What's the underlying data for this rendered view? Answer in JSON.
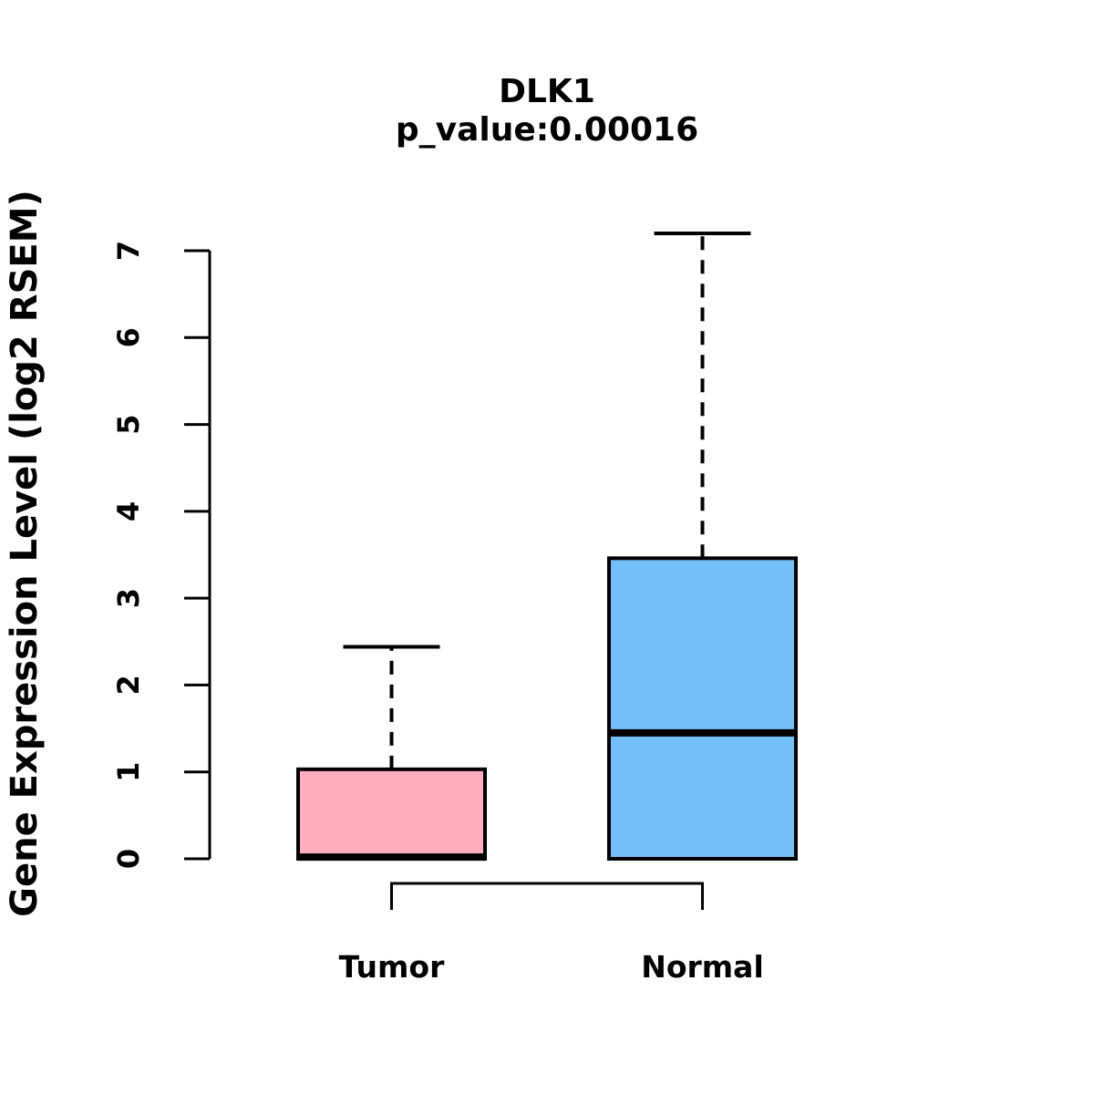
{
  "figure": {
    "background": "#FFFFFF"
  },
  "chart_data": {
    "type": "boxplot",
    "title": "DLK1",
    "subtitle": "p_value:0.00016",
    "p_value": "0.00016",
    "ylabel": "Gene Expression Level (log2 RSEM)",
    "xlabel": "",
    "categories": [
      "Tumor",
      "Normal"
    ],
    "yticks": [
      0,
      1,
      2,
      3,
      4,
      5,
      6,
      7
    ],
    "ylim": [
      0,
      7.2
    ],
    "grid": false,
    "legend": "none",
    "series": [
      {
        "name": "Tumor",
        "q1": 0,
        "median": 0.02,
        "q3": 1.03,
        "whisker_low": 0,
        "whisker_high": 2.44,
        "fill": "#FFAEC0"
      },
      {
        "name": "Normal",
        "q1": 0,
        "median": 1.45,
        "q3": 3.46,
        "whisker_low": 0,
        "whisker_high": 7.2,
        "fill": "#74BFF8"
      }
    ],
    "comparison_bracket": {
      "between": [
        "Tumor",
        "Normal"
      ],
      "orientation": "below"
    },
    "colors": {
      "tumor_fill": "#FFAEC0",
      "normal_fill": "#74BFF8",
      "stroke": "#000000",
      "background": "#FFFFFF"
    }
  }
}
